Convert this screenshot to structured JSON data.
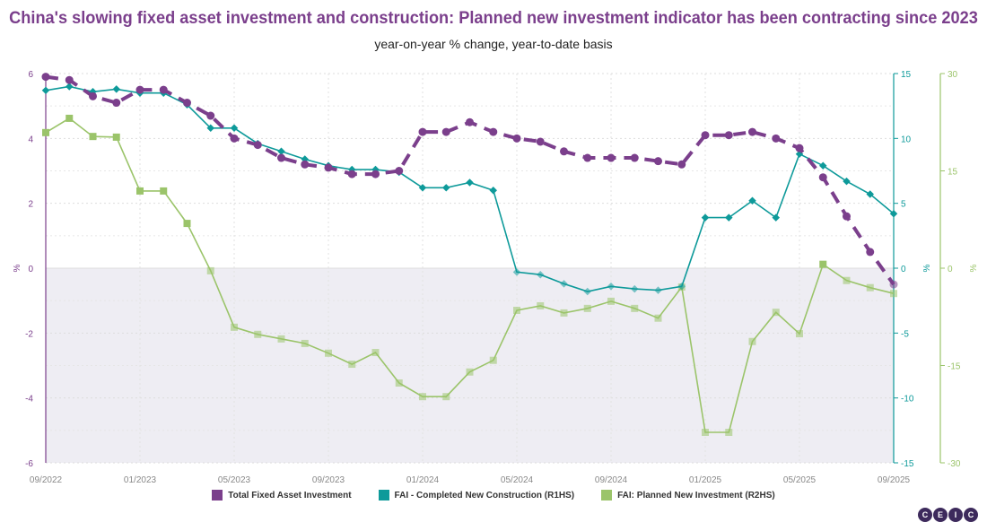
{
  "chart_data": {
    "type": "line",
    "title": "China's slowing fixed asset investment and construction: Planned new investment indicator has been contracting since 2023",
    "subtitle": "year-on-year % change, year-to-date basis",
    "x": [
      "09/2022",
      "10/2022",
      "11/2022",
      "12/2022",
      "01/2023",
      "02/2023",
      "03/2023",
      "04/2023",
      "05/2023",
      "06/2023",
      "07/2023",
      "08/2023",
      "09/2023",
      "10/2023",
      "11/2023",
      "12/2023",
      "01/2024",
      "02/2024",
      "03/2024",
      "04/2024",
      "05/2024",
      "06/2024",
      "07/2024",
      "08/2024",
      "09/2024",
      "10/2024",
      "11/2024",
      "12/2024",
      "01/2025",
      "02/2025",
      "03/2025",
      "04/2025",
      "05/2025",
      "06/2025",
      "07/2025",
      "08/2025",
      "09/2025"
    ],
    "x_tick_labels": [
      "09/2022",
      "01/2023",
      "05/2023",
      "09/2023",
      "01/2024",
      "05/2024",
      "09/2024",
      "01/2025",
      "05/2025",
      "09/2025"
    ],
    "axes": {
      "left": {
        "label": "%",
        "ylim": [
          -6,
          6
        ],
        "ticks": [
          6,
          4,
          2,
          0,
          -2,
          -4,
          -6
        ],
        "color": "#7b3f8c"
      },
      "right1": {
        "label": "%",
        "ylim": [
          -15,
          15
        ],
        "ticks": [
          15,
          10,
          5,
          0,
          -5,
          -10,
          -15
        ],
        "color": "#0e9a9a"
      },
      "right2": {
        "label": "%",
        "ylim": [
          -30,
          30
        ],
        "ticks": [
          30,
          15,
          0,
          -15,
          -30
        ],
        "color": "#9bc46a"
      }
    },
    "grid": true,
    "legend_placement": "bottom",
    "series": [
      {
        "name": "Total Fixed Asset Investment",
        "axis": "left",
        "color": "#7b3f8c",
        "style": "dashed-circle",
        "values": [
          5.9,
          5.8,
          5.3,
          5.1,
          5.5,
          5.5,
          5.1,
          4.7,
          4.0,
          3.8,
          3.4,
          3.2,
          3.1,
          2.9,
          2.9,
          3.0,
          4.2,
          4.2,
          4.5,
          4.2,
          4.0,
          3.9,
          3.6,
          3.4,
          3.4,
          3.4,
          3.3,
          3.2,
          4.1,
          4.1,
          4.2,
          4.0,
          3.7,
          2.8,
          1.6,
          0.5,
          -0.5
        ]
      },
      {
        "name": "FAI - Completed New Construction (R1HS)",
        "axis": "right1",
        "color": "#0e9a9a",
        "style": "solid-diamond",
        "values": [
          13.7,
          14.0,
          13.6,
          13.8,
          13.5,
          13.5,
          12.6,
          10.8,
          10.8,
          9.6,
          9.0,
          8.4,
          7.9,
          7.6,
          7.6,
          7.4,
          6.2,
          6.2,
          6.6,
          6.0,
          -0.3,
          -0.5,
          -1.2,
          -1.8,
          -1.4,
          -1.6,
          -1.7,
          -1.4,
          3.9,
          3.9,
          5.2,
          3.9,
          8.8,
          7.9,
          6.7,
          5.7,
          4.2
        ]
      },
      {
        "name": "FAI: Planned New Investment (R2HS)",
        "axis": "right2",
        "color": "#9bc46a",
        "style": "solid-square",
        "values": [
          20.9,
          23.1,
          20.3,
          20.2,
          11.9,
          11.9,
          6.9,
          -0.4,
          -9.1,
          -10.2,
          -10.9,
          -11.6,
          -13.1,
          -14.8,
          -13.0,
          -17.7,
          -19.8,
          -19.8,
          -16.0,
          -14.2,
          -6.5,
          -5.8,
          -6.9,
          -6.2,
          -5.1,
          -6.2,
          -7.7,
          -2.9,
          -25.3,
          -25.3,
          -11.3,
          -6.8,
          -10.1,
          0.6,
          -1.9,
          -3.0,
          -3.9
        ]
      }
    ]
  },
  "logo": "CEIC"
}
